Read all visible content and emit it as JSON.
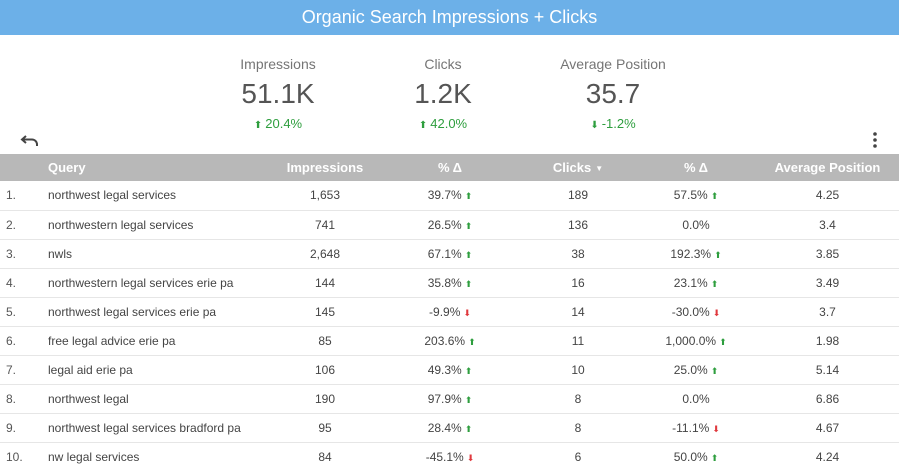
{
  "title": "Organic Search Impressions + Clicks",
  "kpis": [
    {
      "label": "Impressions",
      "value": "51.1K",
      "delta": "20.4%",
      "direction": "up"
    },
    {
      "label": "Clicks",
      "value": "1.2K",
      "delta": "42.0%",
      "direction": "up"
    },
    {
      "label": "Average Position",
      "value": "35.7",
      "delta": "-1.2%",
      "direction": "down"
    }
  ],
  "colors": {
    "header_bar": "#6cb0e8",
    "positive": "#2e9e3e",
    "negative": "#e0393e",
    "table_header": "#b8b8b8"
  },
  "icons": {
    "undo": "undo-icon",
    "more": "more-vert-icon"
  },
  "table": {
    "headers": [
      "Query",
      "Impressions",
      "% Δ",
      "Clicks",
      "% Δ",
      "Average Position"
    ],
    "sorted_column": "Clicks",
    "rows": [
      {
        "n": "1.",
        "query": "northwest legal services",
        "impressions": "1,653",
        "imp_delta": "39.7%",
        "imp_dir": "up",
        "clicks": "189",
        "clk_delta": "57.5%",
        "clk_dir": "up",
        "position": "4.25"
      },
      {
        "n": "2.",
        "query": "northwestern legal services",
        "impressions": "741",
        "imp_delta": "26.5%",
        "imp_dir": "up",
        "clicks": "136",
        "clk_delta": "0.0%",
        "clk_dir": "none",
        "position": "3.4"
      },
      {
        "n": "3.",
        "query": "nwls",
        "impressions": "2,648",
        "imp_delta": "67.1%",
        "imp_dir": "up",
        "clicks": "38",
        "clk_delta": "192.3%",
        "clk_dir": "up",
        "position": "3.85"
      },
      {
        "n": "4.",
        "query": "northwestern legal services erie pa",
        "impressions": "144",
        "imp_delta": "35.8%",
        "imp_dir": "up",
        "clicks": "16",
        "clk_delta": "23.1%",
        "clk_dir": "up",
        "position": "3.49"
      },
      {
        "n": "5.",
        "query": "northwest legal services erie pa",
        "impressions": "145",
        "imp_delta": "-9.9%",
        "imp_dir": "down",
        "clicks": "14",
        "clk_delta": "-30.0%",
        "clk_dir": "down",
        "position": "3.7"
      },
      {
        "n": "6.",
        "query": "free legal advice erie pa",
        "impressions": "85",
        "imp_delta": "203.6%",
        "imp_dir": "up",
        "clicks": "11",
        "clk_delta": "1,000.0%",
        "clk_dir": "up",
        "position": "1.98"
      },
      {
        "n": "7.",
        "query": "legal aid erie pa",
        "impressions": "106",
        "imp_delta": "49.3%",
        "imp_dir": "up",
        "clicks": "10",
        "clk_delta": "25.0%",
        "clk_dir": "up",
        "position": "5.14"
      },
      {
        "n": "8.",
        "query": "northwest legal",
        "impressions": "190",
        "imp_delta": "97.9%",
        "imp_dir": "up",
        "clicks": "8",
        "clk_delta": "0.0%",
        "clk_dir": "none",
        "position": "6.86"
      },
      {
        "n": "9.",
        "query": "northwest legal services bradford pa",
        "impressions": "95",
        "imp_delta": "28.4%",
        "imp_dir": "up",
        "clicks": "8",
        "clk_delta": "-11.1%",
        "clk_dir": "down",
        "position": "4.67"
      },
      {
        "n": "10.",
        "query": "nw legal services",
        "impressions": "84",
        "imp_delta": "-45.1%",
        "imp_dir": "down",
        "clicks": "6",
        "clk_delta": "50.0%",
        "clk_dir": "up",
        "position": "4.24"
      }
    ]
  }
}
